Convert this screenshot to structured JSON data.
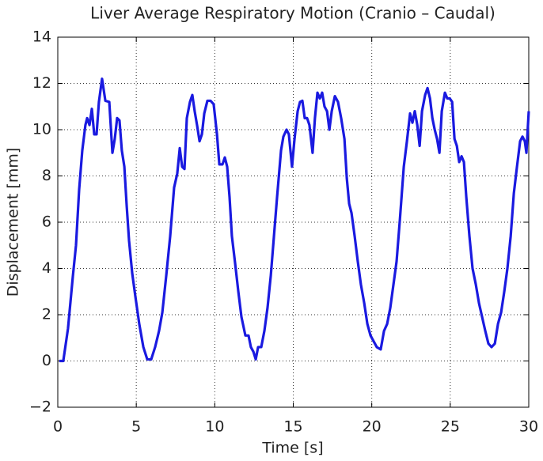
{
  "chart_data": {
    "type": "line",
    "title": "Liver Average Respiratory Motion (Cranio – Caudal)",
    "x_label": "Time [s]",
    "y_label": "Displacement [mm]",
    "xlim": [
      0,
      30
    ],
    "xticks": [
      0,
      5,
      10,
      15,
      20,
      25,
      30
    ],
    "ylim": [
      -2,
      14
    ],
    "yticks": [
      {
        "value": -2,
        "label": "−2"
      },
      0,
      2,
      4,
      6,
      8,
      10,
      12,
      14
    ],
    "grid": true,
    "series": [
      {
        "color": "#1a1ae0",
        "x": [
          0.1,
          0.35,
          0.65,
          0.96,
          1.16,
          1.36,
          1.56,
          1.76,
          1.87,
          2.02,
          2.17,
          2.32,
          2.47,
          2.62,
          2.82,
          3.03,
          3.28,
          3.48,
          3.63,
          3.78,
          3.93,
          4.08,
          4.24,
          4.39,
          4.54,
          4.74,
          4.94,
          5.19,
          5.45,
          5.7,
          5.95,
          6.2,
          6.45,
          6.66,
          6.91,
          7.16,
          7.41,
          7.61,
          7.77,
          7.92,
          8.07,
          8.22,
          8.42,
          8.57,
          8.72,
          8.87,
          9.03,
          9.18,
          9.33,
          9.53,
          9.73,
          9.93,
          10.14,
          10.29,
          10.49,
          10.64,
          10.79,
          10.94,
          11.09,
          11.3,
          11.5,
          11.7,
          11.95,
          12.15,
          12.3,
          12.46,
          12.61,
          12.76,
          12.96,
          13.16,
          13.36,
          13.57,
          13.77,
          13.97,
          14.22,
          14.37,
          14.57,
          14.72,
          14.92,
          15.08,
          15.28,
          15.43,
          15.58,
          15.73,
          15.88,
          16.03,
          16.23,
          16.38,
          16.54,
          16.69,
          16.84,
          16.99,
          17.15,
          17.3,
          17.45,
          17.65,
          17.85,
          18.05,
          18.26,
          18.41,
          18.56,
          18.71,
          18.91,
          19.11,
          19.31,
          19.52,
          19.72,
          19.92,
          20.12,
          20.32,
          20.57,
          20.78,
          20.98,
          21.18,
          21.38,
          21.58,
          21.79,
          22.04,
          22.24,
          22.44,
          22.59,
          22.74,
          22.9,
          23.05,
          23.2,
          23.4,
          23.55,
          23.71,
          23.86,
          24.01,
          24.16,
          24.31,
          24.46,
          24.66,
          24.81,
          24.97,
          25.12,
          25.27,
          25.42,
          25.57,
          25.72,
          25.87,
          26.02,
          26.22,
          26.42,
          26.63,
          26.83,
          27.03,
          27.23,
          27.43,
          27.63,
          27.84,
          28.04,
          28.24,
          28.44,
          28.64,
          28.85,
          29.05,
          29.25,
          29.45,
          29.6,
          29.75,
          29.85,
          30.0
        ],
        "values": [
          0,
          0,
          1.4,
          3.66,
          5.0,
          7.4,
          9.1,
          10.2,
          10.5,
          10.2,
          10.9,
          9.8,
          9.8,
          11.2,
          12.2,
          11.25,
          11.2,
          9.0,
          9.6,
          10.5,
          10.4,
          9.1,
          8.4,
          6.7,
          5.2,
          3.8,
          2.8,
          1.6,
          0.6,
          0.07,
          0.07,
          0.6,
          1.3,
          2.1,
          3.7,
          5.4,
          7.5,
          8.1,
          9.2,
          8.4,
          8.3,
          10.5,
          11.2,
          11.5,
          10.8,
          10.2,
          9.5,
          9.8,
          10.7,
          11.25,
          11.25,
          11.1,
          9.8,
          8.5,
          8.5,
          8.8,
          8.4,
          7.1,
          5.4,
          4.2,
          3.0,
          1.9,
          1.1,
          1.1,
          0.6,
          0.4,
          0.07,
          0.6,
          0.6,
          1.3,
          2.3,
          3.7,
          5.4,
          7.1,
          9.1,
          9.7,
          10.0,
          9.8,
          8.4,
          9.6,
          10.8,
          11.2,
          11.25,
          10.5,
          10.5,
          10.2,
          9.0,
          10.5,
          11.6,
          11.35,
          11.6,
          11.0,
          10.8,
          10.0,
          10.8,
          11.45,
          11.2,
          10.5,
          9.6,
          7.9,
          6.8,
          6.4,
          5.4,
          4.3,
          3.3,
          2.5,
          1.6,
          1.1,
          0.85,
          0.6,
          0.5,
          1.3,
          1.6,
          2.3,
          3.3,
          4.3,
          6.1,
          8.4,
          9.5,
          10.7,
          10.3,
          10.8,
          10.2,
          9.3,
          10.8,
          11.5,
          11.8,
          11.35,
          10.5,
          10.0,
          9.6,
          9.0,
          10.8,
          11.6,
          11.35,
          11.35,
          11.2,
          9.6,
          9.3,
          8.6,
          8.85,
          8.6,
          7.1,
          5.4,
          4.0,
          3.3,
          2.5,
          1.9,
          1.3,
          0.75,
          0.6,
          0.75,
          1.6,
          2.1,
          3.0,
          4.0,
          5.4,
          7.25,
          8.4,
          9.5,
          9.7,
          9.5,
          9.0,
          10.8
        ]
      }
    ]
  }
}
